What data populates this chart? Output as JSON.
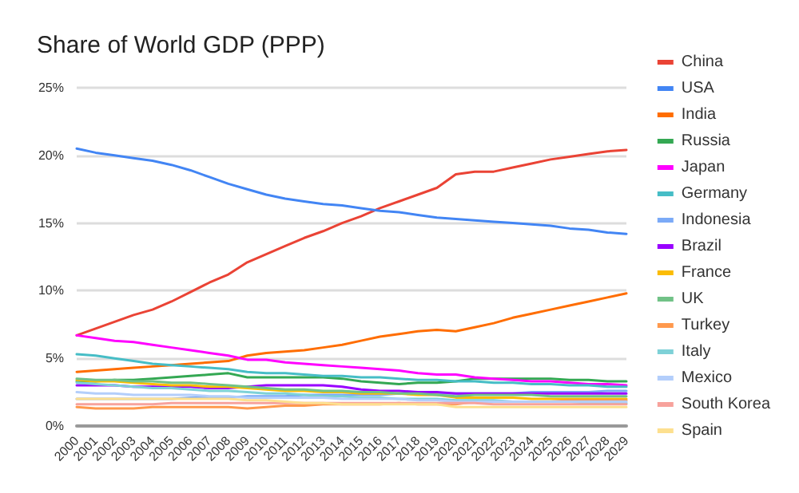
{
  "chart_data": {
    "type": "line",
    "title": "Share of World GDP (PPP)",
    "categories": [
      "2000",
      "2001",
      "2002",
      "2003",
      "2004",
      "2005",
      "2006",
      "2007",
      "2008",
      "2009",
      "2010",
      "2011",
      "2012",
      "2013",
      "2014",
      "2015",
      "2016",
      "2017",
      "2018",
      "2019",
      "2020",
      "2021",
      "2022",
      "2023",
      "2024",
      "2025",
      "2026",
      "2027",
      "2028",
      "2029"
    ],
    "series": [
      {
        "name": "China",
        "color": "#ea4335",
        "values": [
          6.7,
          7.2,
          7.7,
          8.2,
          8.6,
          9.2,
          9.9,
          10.6,
          11.2,
          12.1,
          12.7,
          13.3,
          13.9,
          14.4,
          15.0,
          15.5,
          16.1,
          16.6,
          17.1,
          17.6,
          18.6,
          18.8,
          18.8,
          19.1,
          19.4,
          19.7,
          19.9,
          20.1,
          20.3,
          20.4
        ]
      },
      {
        "name": "USA",
        "color": "#4285f4",
        "values": [
          20.5,
          20.2,
          20.0,
          19.8,
          19.6,
          19.3,
          18.9,
          18.4,
          17.9,
          17.5,
          17.1,
          16.8,
          16.6,
          16.4,
          16.3,
          16.1,
          15.9,
          15.8,
          15.6,
          15.4,
          15.3,
          15.2,
          15.1,
          15.0,
          14.9,
          14.8,
          14.6,
          14.5,
          14.3,
          14.2
        ]
      },
      {
        "name": "India",
        "color": "#ff6d01",
        "values": [
          4.0,
          4.1,
          4.2,
          4.3,
          4.4,
          4.5,
          4.6,
          4.7,
          4.8,
          5.2,
          5.4,
          5.5,
          5.6,
          5.8,
          6.0,
          6.3,
          6.6,
          6.8,
          7.0,
          7.1,
          7.0,
          7.3,
          7.6,
          8.0,
          8.3,
          8.6,
          8.9,
          9.2,
          9.5,
          9.8
        ]
      },
      {
        "name": "Russia",
        "color": "#34a853",
        "values": [
          3.3,
          3.3,
          3.4,
          3.4,
          3.5,
          3.6,
          3.7,
          3.8,
          3.9,
          3.6,
          3.6,
          3.6,
          3.6,
          3.6,
          3.5,
          3.3,
          3.2,
          3.1,
          3.2,
          3.2,
          3.3,
          3.5,
          3.5,
          3.5,
          3.5,
          3.5,
          3.4,
          3.4,
          3.3,
          3.3
        ]
      },
      {
        "name": "Japan",
        "color": "#ff00ff",
        "values": [
          6.7,
          6.5,
          6.3,
          6.2,
          6.0,
          5.8,
          5.6,
          5.4,
          5.2,
          4.9,
          4.9,
          4.7,
          4.6,
          4.5,
          4.4,
          4.3,
          4.2,
          4.1,
          3.9,
          3.8,
          3.8,
          3.6,
          3.5,
          3.4,
          3.3,
          3.3,
          3.2,
          3.1,
          3.1,
          3.0
        ]
      },
      {
        "name": "Germany",
        "color": "#46bdc6",
        "values": [
          5.3,
          5.2,
          5.0,
          4.8,
          4.6,
          4.5,
          4.4,
          4.3,
          4.2,
          4.0,
          3.9,
          3.9,
          3.8,
          3.7,
          3.7,
          3.6,
          3.6,
          3.5,
          3.4,
          3.4,
          3.3,
          3.3,
          3.2,
          3.2,
          3.1,
          3.1,
          3.0,
          3.0,
          2.9,
          2.9
        ]
      },
      {
        "name": "Indonesia",
        "color": "#7baaf7",
        "values": [
          2.0,
          2.0,
          2.0,
          2.0,
          2.0,
          2.0,
          2.1,
          2.1,
          2.1,
          2.2,
          2.2,
          2.2,
          2.3,
          2.3,
          2.3,
          2.3,
          2.3,
          2.4,
          2.4,
          2.4,
          2.4,
          2.4,
          2.4,
          2.4,
          2.5,
          2.5,
          2.5,
          2.5,
          2.6,
          2.6
        ]
      },
      {
        "name": "Brazil",
        "color": "#9900ff",
        "values": [
          3.0,
          3.0,
          3.0,
          2.9,
          2.9,
          2.9,
          2.9,
          2.8,
          2.8,
          2.9,
          3.0,
          3.0,
          3.0,
          3.0,
          2.9,
          2.7,
          2.6,
          2.6,
          2.5,
          2.5,
          2.4,
          2.4,
          2.4,
          2.4,
          2.4,
          2.4,
          2.4,
          2.4,
          2.4,
          2.4
        ]
      },
      {
        "name": "France",
        "color": "#fbbc04",
        "values": [
          3.4,
          3.3,
          3.3,
          3.2,
          3.1,
          3.0,
          3.0,
          2.9,
          2.9,
          2.8,
          2.7,
          2.6,
          2.6,
          2.5,
          2.5,
          2.4,
          2.4,
          2.4,
          2.3,
          2.3,
          2.1,
          2.1,
          2.1,
          2.1,
          2.0,
          2.0,
          2.0,
          2.0,
          2.0,
          2.0
        ]
      },
      {
        "name": "UK",
        "color": "#71c287",
        "values": [
          3.5,
          3.4,
          3.4,
          3.3,
          3.3,
          3.2,
          3.2,
          3.1,
          3.0,
          2.9,
          2.8,
          2.7,
          2.7,
          2.6,
          2.6,
          2.5,
          2.5,
          2.4,
          2.4,
          2.3,
          2.2,
          2.3,
          2.3,
          2.3,
          2.3,
          2.2,
          2.2,
          2.2,
          2.2,
          2.2
        ]
      },
      {
        "name": "Turkey",
        "color": "#ff994d",
        "values": [
          1.4,
          1.3,
          1.3,
          1.3,
          1.4,
          1.4,
          1.4,
          1.4,
          1.4,
          1.3,
          1.4,
          1.5,
          1.5,
          1.6,
          1.6,
          1.6,
          1.6,
          1.7,
          1.6,
          1.6,
          1.6,
          1.8,
          1.8,
          1.8,
          1.8,
          1.8,
          1.9,
          1.9,
          1.9,
          1.9
        ]
      },
      {
        "name": "Italy",
        "color": "#7ed1d7",
        "values": [
          3.2,
          3.1,
          3.0,
          2.9,
          2.8,
          2.8,
          2.7,
          2.6,
          2.6,
          2.5,
          2.4,
          2.4,
          2.3,
          2.2,
          2.2,
          2.1,
          2.1,
          2.0,
          2.0,
          2.0,
          1.9,
          1.9,
          1.9,
          1.8,
          1.8,
          1.8,
          1.8,
          1.7,
          1.7,
          1.7
        ]
      },
      {
        "name": "Mexico",
        "color": "#b3cefb",
        "values": [
          2.5,
          2.4,
          2.4,
          2.3,
          2.3,
          2.3,
          2.3,
          2.2,
          2.2,
          2.1,
          2.1,
          2.1,
          2.1,
          2.1,
          2.0,
          2.0,
          2.0,
          2.0,
          1.9,
          1.9,
          1.8,
          1.8,
          1.8,
          1.8,
          1.8,
          1.8,
          1.8,
          1.8,
          1.8,
          1.8
        ]
      },
      {
        "name": "South Korea",
        "color": "#f7a29c",
        "values": [
          1.6,
          1.6,
          1.6,
          1.6,
          1.6,
          1.7,
          1.7,
          1.7,
          1.7,
          1.7,
          1.7,
          1.7,
          1.7,
          1.7,
          1.7,
          1.7,
          1.7,
          1.7,
          1.7,
          1.7,
          1.7,
          1.7,
          1.6,
          1.6,
          1.6,
          1.6,
          1.6,
          1.6,
          1.6,
          1.6
        ]
      },
      {
        "name": "Spain",
        "color": "#fde08f",
        "values": [
          2.0,
          2.0,
          2.0,
          2.0,
          2.0,
          2.0,
          2.0,
          2.0,
          2.0,
          1.9,
          1.9,
          1.8,
          1.7,
          1.7,
          1.6,
          1.6,
          1.6,
          1.6,
          1.6,
          1.6,
          1.4,
          1.4,
          1.4,
          1.4,
          1.4,
          1.4,
          1.4,
          1.4,
          1.4,
          1.4
        ]
      }
    ],
    "ylim": [
      0,
      25
    ],
    "yticks": [
      {
        "value": 0,
        "label": "0%"
      },
      {
        "value": 5,
        "label": "5%"
      },
      {
        "value": 10,
        "label": "10%"
      },
      {
        "value": 15,
        "label": "15%"
      },
      {
        "value": 20,
        "label": "20%"
      },
      {
        "value": 25,
        "label": "25%"
      }
    ],
    "grid": "y",
    "legend": "right",
    "marker": "none",
    "line_style": "solid"
  }
}
